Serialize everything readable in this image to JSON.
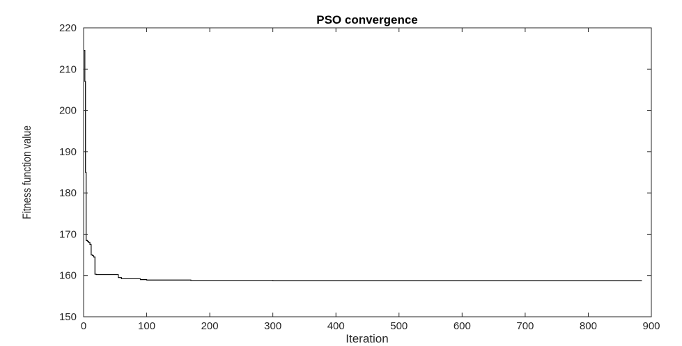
{
  "chart_data": {
    "type": "line",
    "title": "PSO convergence",
    "xlabel": "Iteration",
    "ylabel": "Fitness function value",
    "xlim": [
      0,
      900
    ],
    "ylim": [
      150,
      220
    ],
    "xticks": [
      0,
      100,
      200,
      300,
      400,
      500,
      600,
      700,
      800,
      900
    ],
    "yticks": [
      150,
      160,
      170,
      180,
      190,
      200,
      210,
      220
    ],
    "grid": false,
    "legend": "none",
    "line_color": "#000000",
    "series": [
      {
        "x": [
          1,
          2,
          3,
          4,
          6,
          8,
          10,
          12,
          14,
          16,
          18,
          20,
          25,
          30,
          40,
          50,
          55,
          60,
          70,
          80,
          90,
          100,
          120,
          150,
          170,
          200,
          300,
          400,
          500,
          600,
          700,
          800,
          885
        ],
        "y": [
          214.5,
          207,
          185,
          168.5,
          168.3,
          168,
          167.5,
          165,
          164.8,
          164.5,
          160.3,
          160.2,
          160.2,
          160.2,
          160.2,
          160.2,
          159.5,
          159.2,
          159.2,
          159.2,
          159,
          158.9,
          158.9,
          158.9,
          158.8,
          158.8,
          158.75,
          158.75,
          158.75,
          158.75,
          158.75,
          158.75,
          158.75
        ]
      }
    ]
  }
}
